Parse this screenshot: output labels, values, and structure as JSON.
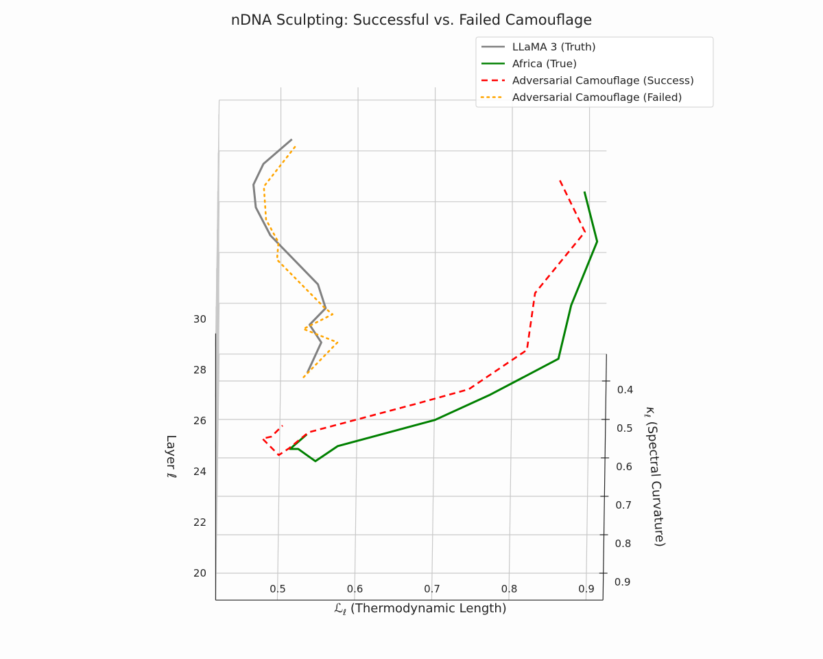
{
  "chart_data": {
    "type": "line",
    "projection": "3d",
    "title": "nDNA Sculpting: Successful vs. Failed Camouflage",
    "xlabel_symbol": "ℒ",
    "xlabel_sub": "ℓ",
    "xlabel_text": " (Thermodynamic Length)",
    "ylabel_symbol": "κ",
    "ylabel_sub": "ℓ",
    "ylabel_text": " (Spectral Curvature)",
    "zlabel": "Layer ℓ",
    "xlim": [
      0.42,
      0.922
    ],
    "ylim": [
      0.33,
      0.97
    ],
    "zlim": [
      20,
      30.5
    ],
    "xticks": [
      "0.5",
      "0.6",
      "0.7",
      "0.8",
      "0.9"
    ],
    "yticks": [
      "0.4",
      "0.5",
      "0.6",
      "0.7",
      "0.8",
      "0.9"
    ],
    "zticks": [
      "20",
      "22",
      "24",
      "26",
      "28",
      "30"
    ],
    "grid": true,
    "legend_position": "top-right",
    "series": [
      {
        "name": "LLaMA 3 (Truth)",
        "color": "#808080",
        "style": "solid",
        "layer": [
          32,
          31,
          30,
          29,
          28,
          27,
          26,
          25,
          24,
          23
        ],
        "length": [
          0.516,
          0.479,
          0.466,
          0.469,
          0.488,
          0.55,
          0.56,
          0.539,
          0.554,
          0.536
        ],
        "curvature": [
          0.564,
          0.562,
          0.55,
          0.543,
          0.55,
          0.611,
          0.607,
          0.584,
          0.564,
          0.577
        ]
      },
      {
        "name": "Africa (True)",
        "color": "#008000",
        "style": "solid",
        "layer": [
          32,
          31,
          30,
          29,
          28,
          27,
          26,
          25,
          24,
          23,
          22
        ],
        "length": [
          0.896,
          0.913,
          0.88,
          0.864,
          0.776,
          0.704,
          0.578,
          0.549,
          0.526,
          0.515,
          0.536
        ],
        "curvature": [
          0.7,
          0.764,
          0.864,
          0.937,
          0.964,
          0.964,
          0.966,
          0.939,
          0.841,
          0.775,
          0.671
        ]
      },
      {
        "name": "Adversarial Camouflage (Success)",
        "color": "#ff0000",
        "style": "dashed",
        "layer": [
          32,
          31,
          30,
          29,
          28,
          27,
          26,
          25,
          24,
          23,
          22,
          21
        ],
        "length": [
          0.864,
          0.897,
          0.833,
          0.823,
          0.748,
          0.683,
          0.54,
          0.515,
          0.501,
          0.479,
          0.49,
          0.504
        ],
        "curvature": [
          0.671,
          0.739,
          0.832,
          0.914,
          0.95,
          0.92,
          0.93,
          0.905,
          0.857,
          0.748,
          0.677,
          0.582
        ]
      },
      {
        "name": "Adversarial Camouflage (Failed)",
        "color": "#ffa500",
        "style": "dotted",
        "layer": [
          32,
          31,
          30,
          29,
          28,
          27,
          26,
          25,
          24,
          23
        ],
        "length": [
          0.52,
          0.48,
          0.483,
          0.499,
          0.497,
          0.558,
          0.569,
          0.531,
          0.575,
          0.53
        ],
        "curvature": [
          0.584,
          0.621,
          0.641,
          0.634,
          0.613,
          0.67,
          0.623,
          0.595,
          0.564,
          0.591
        ]
      }
    ]
  }
}
